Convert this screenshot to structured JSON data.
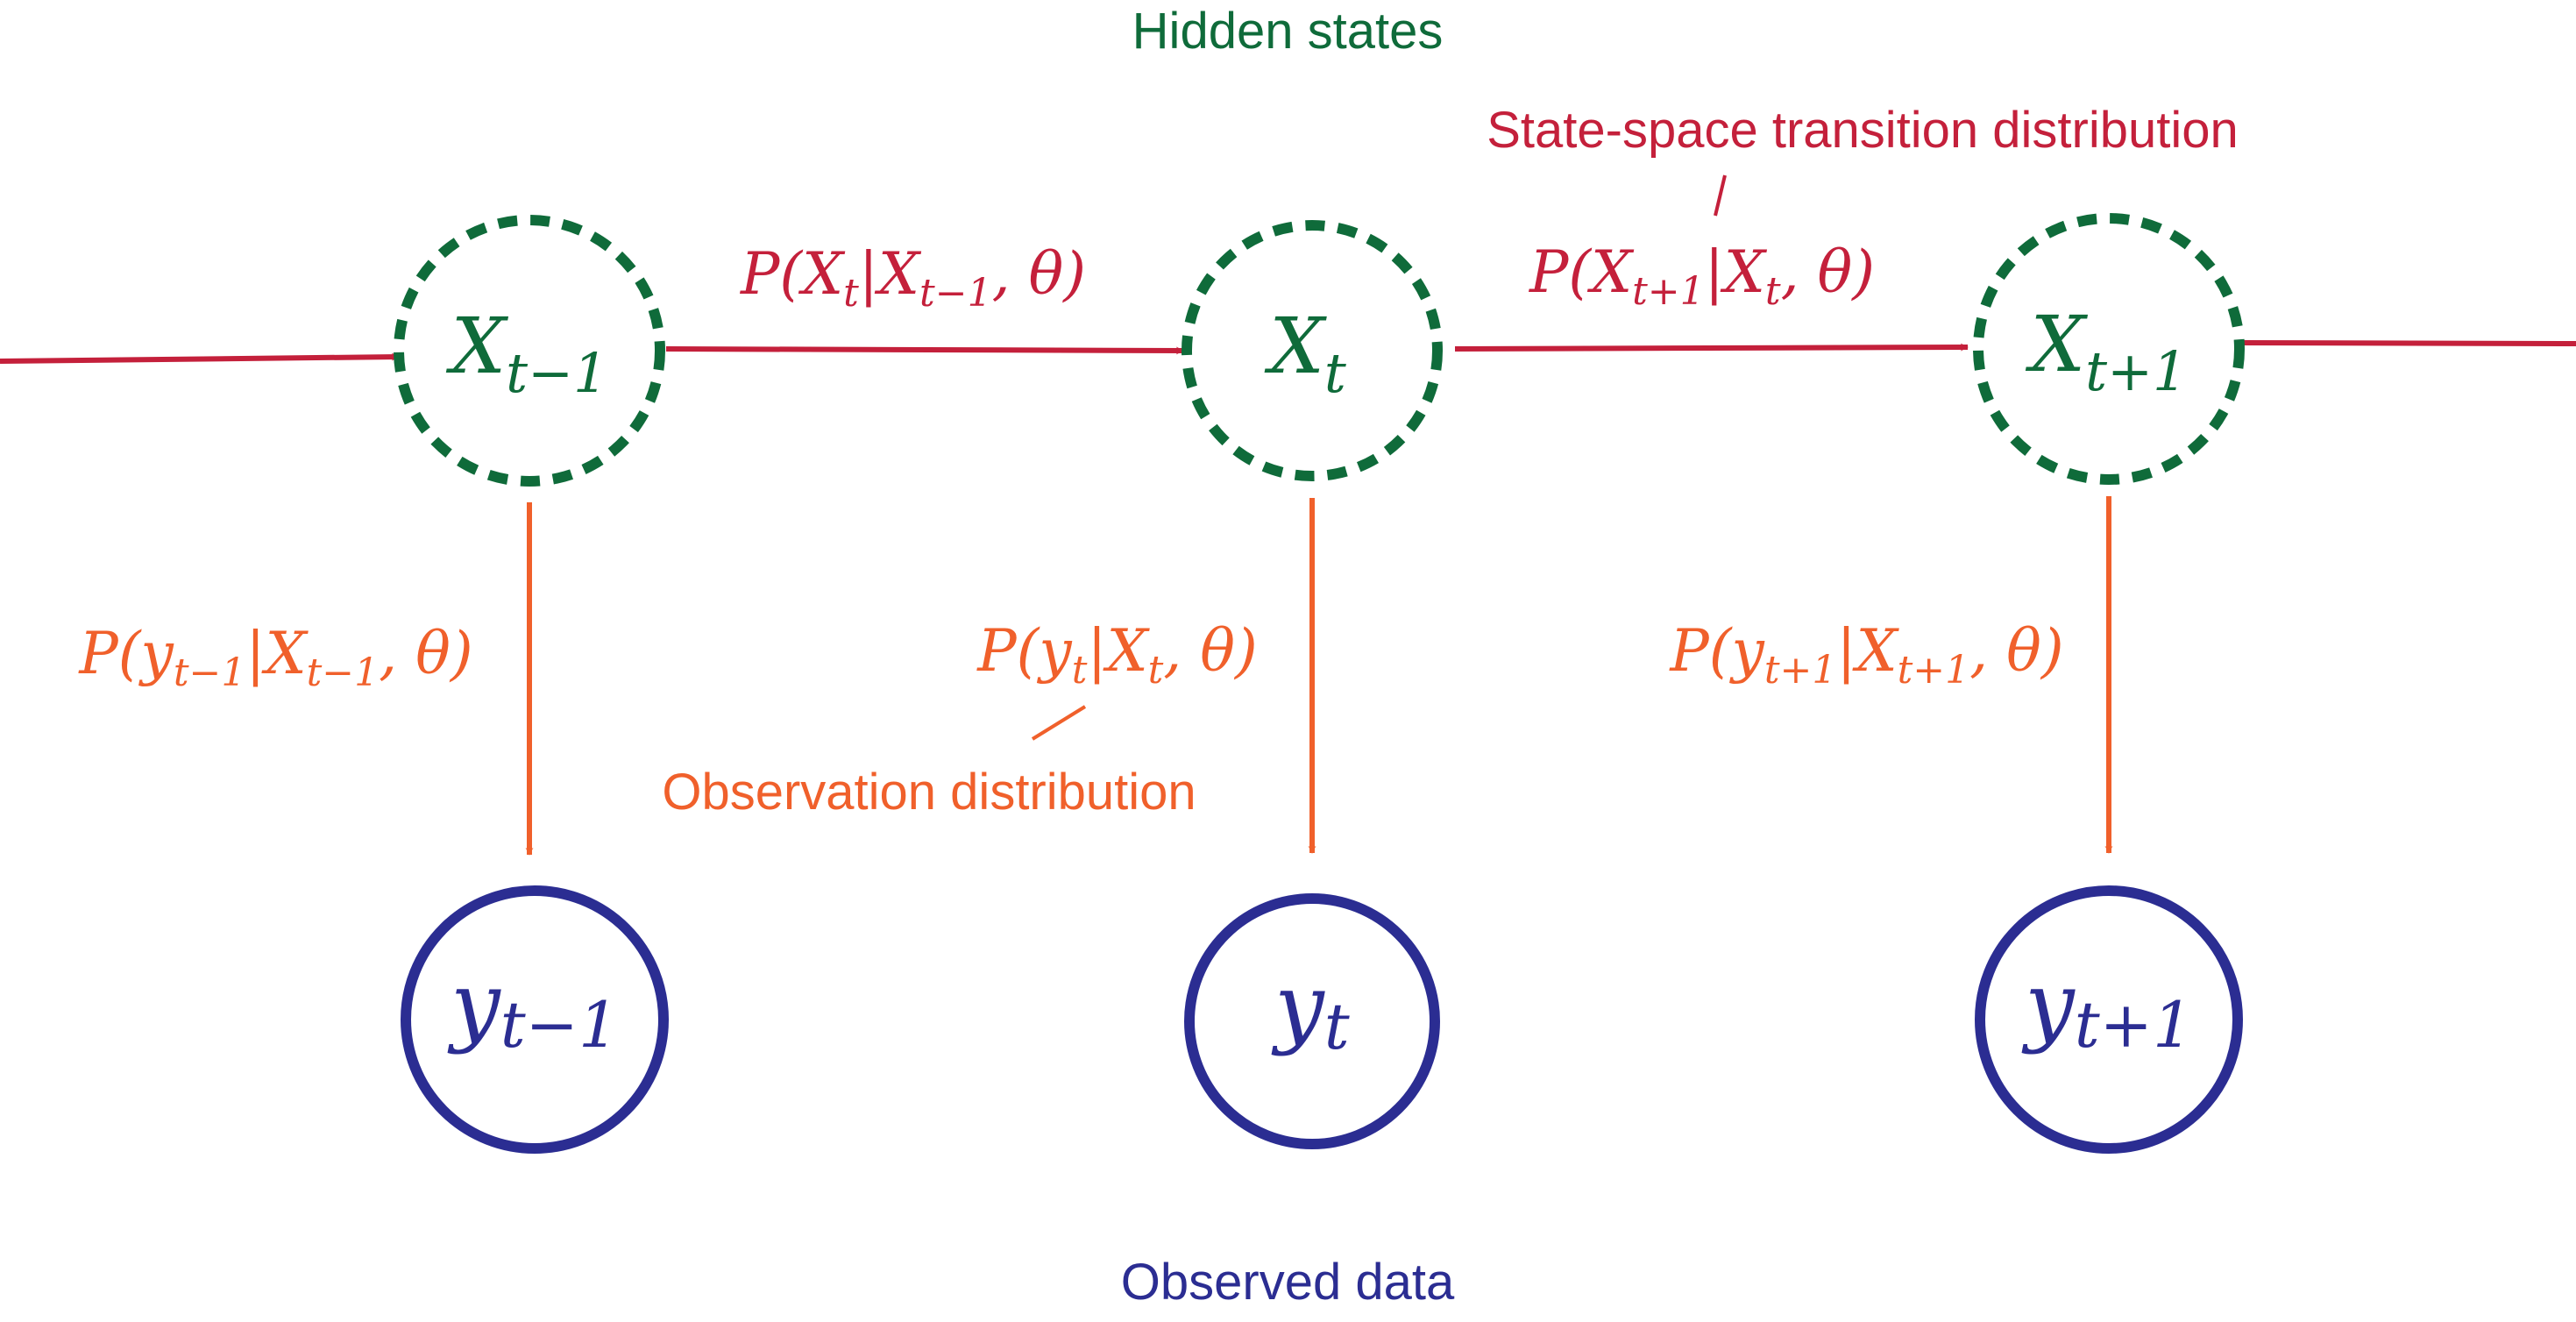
{
  "colors": {
    "hidden": "#0f6b3a",
    "transition": "#c4203b",
    "observation": "#f0602b",
    "observed": "#2b2d92"
  },
  "headings": {
    "hidden_states": "Hidden states",
    "observed_data": "Observed data",
    "transition_dist": "State-space transition distribution",
    "observation_dist": "Observation distribution"
  },
  "hidden_nodes": [
    {
      "base": "X",
      "sub": "t−1"
    },
    {
      "base": "X",
      "sub": "t"
    },
    {
      "base": "X",
      "sub": "t+1"
    }
  ],
  "observed_nodes": [
    {
      "base": "y",
      "sub": "t−1"
    },
    {
      "base": "y",
      "sub": "t"
    },
    {
      "base": "y",
      "sub": "t+1"
    }
  ],
  "transition_labels": [
    {
      "open": "P(X",
      "sub1": "t",
      "mid": "|X",
      "sub2": "t−1",
      "close": ", θ)"
    },
    {
      "open": "P(X",
      "sub1": "t+1",
      "mid": "|X",
      "sub2": "t",
      "close": ", θ)"
    }
  ],
  "observation_labels": [
    {
      "open": "P(y",
      "sub1": "t−1",
      "mid": "|X",
      "sub2": "t−1",
      "close": ", θ)"
    },
    {
      "open": "P(y",
      "sub1": "t",
      "mid": "|X",
      "sub2": "t",
      "close": ", θ)"
    },
    {
      "open": "P(y",
      "sub1": "t+1",
      "mid": "|X",
      "sub2": "t+1",
      "close": ", θ)"
    }
  ]
}
